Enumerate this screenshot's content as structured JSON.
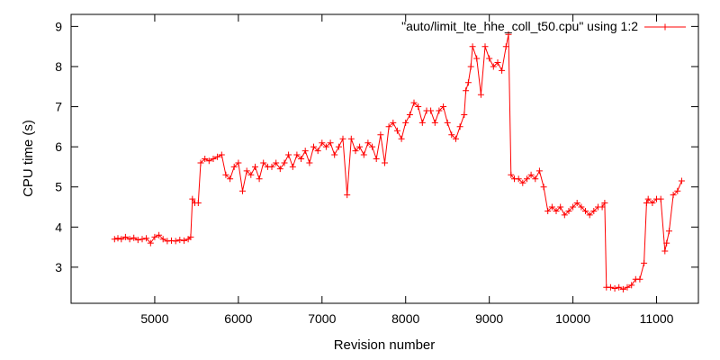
{
  "chart_data": {
    "type": "line",
    "xlabel": "Revision number",
    "ylabel": "CPU time (s)",
    "xlim": [
      4000,
      11500
    ],
    "ylim": [
      2.1,
      9.3
    ],
    "xticks": [
      5000,
      6000,
      7000,
      8000,
      9000,
      10000,
      11000
    ],
    "yticks": [
      3,
      4,
      5,
      6,
      7,
      8,
      9
    ],
    "xtick_labels": [
      "5000",
      "6000",
      "7000",
      "8000",
      "9000",
      "10000",
      "11000"
    ],
    "ytick_labels": [
      "3",
      "4",
      "5",
      "6",
      "7",
      "8",
      "9"
    ],
    "legend_position": "top-right",
    "grid": false,
    "series": [
      {
        "name": "\"auto/limit_lte_hhe_coll_t50.cpu\" using 1:2",
        "color": "#ff0000",
        "marker": "plus",
        "x": [
          4520,
          4560,
          4600,
          4650,
          4700,
          4750,
          4800,
          4850,
          4900,
          4950,
          5000,
          5050,
          5100,
          5150,
          5200,
          5250,
          5300,
          5350,
          5400,
          5430,
          5450,
          5480,
          5520,
          5550,
          5600,
          5650,
          5700,
          5750,
          5800,
          5850,
          5900,
          5950,
          6000,
          6050,
          6100,
          6150,
          6200,
          6250,
          6300,
          6350,
          6400,
          6450,
          6500,
          6550,
          6600,
          6650,
          6700,
          6750,
          6800,
          6850,
          6900,
          6950,
          7000,
          7050,
          7100,
          7150,
          7200,
          7250,
          7300,
          7350,
          7400,
          7450,
          7500,
          7550,
          7600,
          7650,
          7700,
          7750,
          7800,
          7850,
          7900,
          7950,
          8000,
          8050,
          8100,
          8150,
          8200,
          8250,
          8300,
          8350,
          8400,
          8450,
          8500,
          8550,
          8600,
          8650,
          8700,
          8720,
          8750,
          8780,
          8800,
          8850,
          8900,
          8950,
          9000,
          9050,
          9100,
          9150,
          9200,
          9230,
          9260,
          9300,
          9350,
          9400,
          9450,
          9500,
          9550,
          9600,
          9650,
          9700,
          9750,
          9800,
          9850,
          9900,
          9950,
          10000,
          10050,
          10100,
          10150,
          10200,
          10250,
          10300,
          10350,
          10380,
          10400,
          10450,
          10500,
          10550,
          10600,
          10650,
          10700,
          10750,
          10800,
          10850,
          10880,
          10900,
          10950,
          11000,
          11050,
          11100,
          11120,
          11150,
          11200,
          11250,
          11300
        ],
        "y": [
          3.7,
          3.72,
          3.7,
          3.75,
          3.7,
          3.73,
          3.68,
          3.7,
          3.72,
          3.6,
          3.75,
          3.8,
          3.7,
          3.65,
          3.66,
          3.65,
          3.68,
          3.66,
          3.7,
          3.75,
          4.7,
          4.6,
          4.6,
          5.6,
          5.7,
          5.65,
          5.7,
          5.75,
          5.8,
          5.3,
          5.2,
          5.5,
          5.6,
          4.9,
          5.4,
          5.3,
          5.5,
          5.2,
          5.6,
          5.5,
          5.5,
          5.6,
          5.45,
          5.6,
          5.8,
          5.5,
          5.8,
          5.7,
          5.9,
          5.6,
          6.0,
          5.9,
          6.1,
          6.0,
          6.1,
          5.8,
          6.0,
          6.2,
          4.8,
          6.2,
          5.9,
          6.0,
          5.8,
          6.1,
          6.0,
          5.7,
          6.3,
          5.6,
          6.5,
          6.6,
          6.4,
          6.2,
          6.6,
          6.8,
          7.1,
          7.0,
          6.6,
          6.9,
          6.9,
          6.6,
          6.9,
          7.0,
          6.6,
          6.3,
          6.2,
          6.5,
          6.8,
          7.4,
          7.6,
          8.0,
          8.5,
          8.2,
          7.3,
          8.5,
          8.2,
          8.0,
          8.1,
          7.9,
          8.5,
          8.8,
          5.3,
          5.2,
          5.2,
          5.1,
          5.2,
          5.3,
          5.2,
          5.4,
          5.0,
          4.4,
          4.5,
          4.4,
          4.5,
          4.3,
          4.4,
          4.5,
          4.6,
          4.5,
          4.4,
          4.3,
          4.4,
          4.5,
          4.5,
          4.6,
          2.5,
          2.5,
          2.47,
          2.5,
          2.45,
          2.5,
          2.55,
          2.7,
          2.7,
          3.1,
          4.6,
          4.7,
          4.6,
          4.7,
          4.7,
          3.4,
          3.6,
          3.9,
          4.8,
          4.9,
          5.15
        ]
      }
    ]
  }
}
